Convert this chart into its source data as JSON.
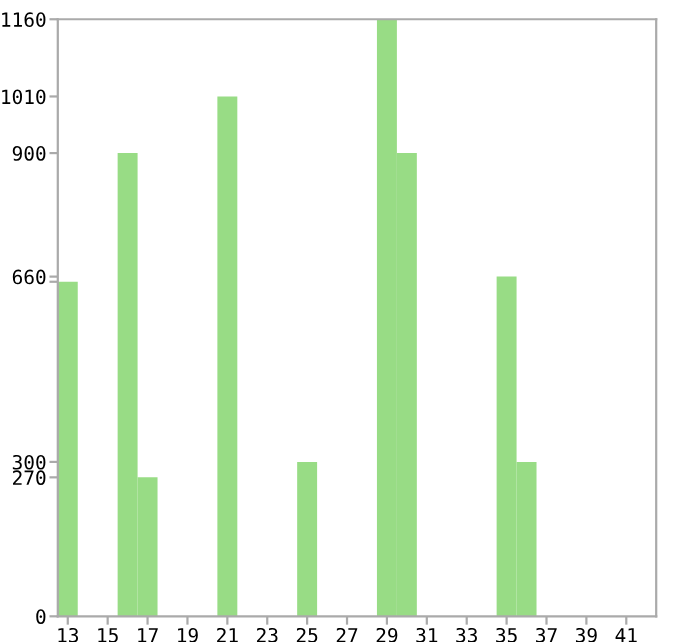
{
  "chart_data": {
    "type": "bar",
    "categories": [
      "13",
      null,
      "15",
      null,
      "17",
      null,
      "19",
      null,
      "21",
      null,
      "23",
      null,
      "25",
      null,
      "27",
      null,
      "29",
      null,
      "31",
      null,
      "33",
      null,
      "35",
      null,
      "37",
      null,
      "39",
      null,
      "41",
      null
    ],
    "values": [
      650,
      0,
      0,
      900,
      270,
      0,
      0,
      0,
      1010,
      0,
      0,
      0,
      300,
      0,
      0,
      0,
      1160,
      900,
      0,
      0,
      0,
      0,
      660,
      300,
      0,
      0,
      0,
      0,
      0,
      0
    ],
    "color": "#98dc85",
    "ylim": [
      0,
      1160
    ],
    "yticks": [
      0,
      270,
      300,
      {
        "value": 650,
        "label": null
      },
      660,
      900,
      1010,
      1160
    ],
    "grid": false
  }
}
